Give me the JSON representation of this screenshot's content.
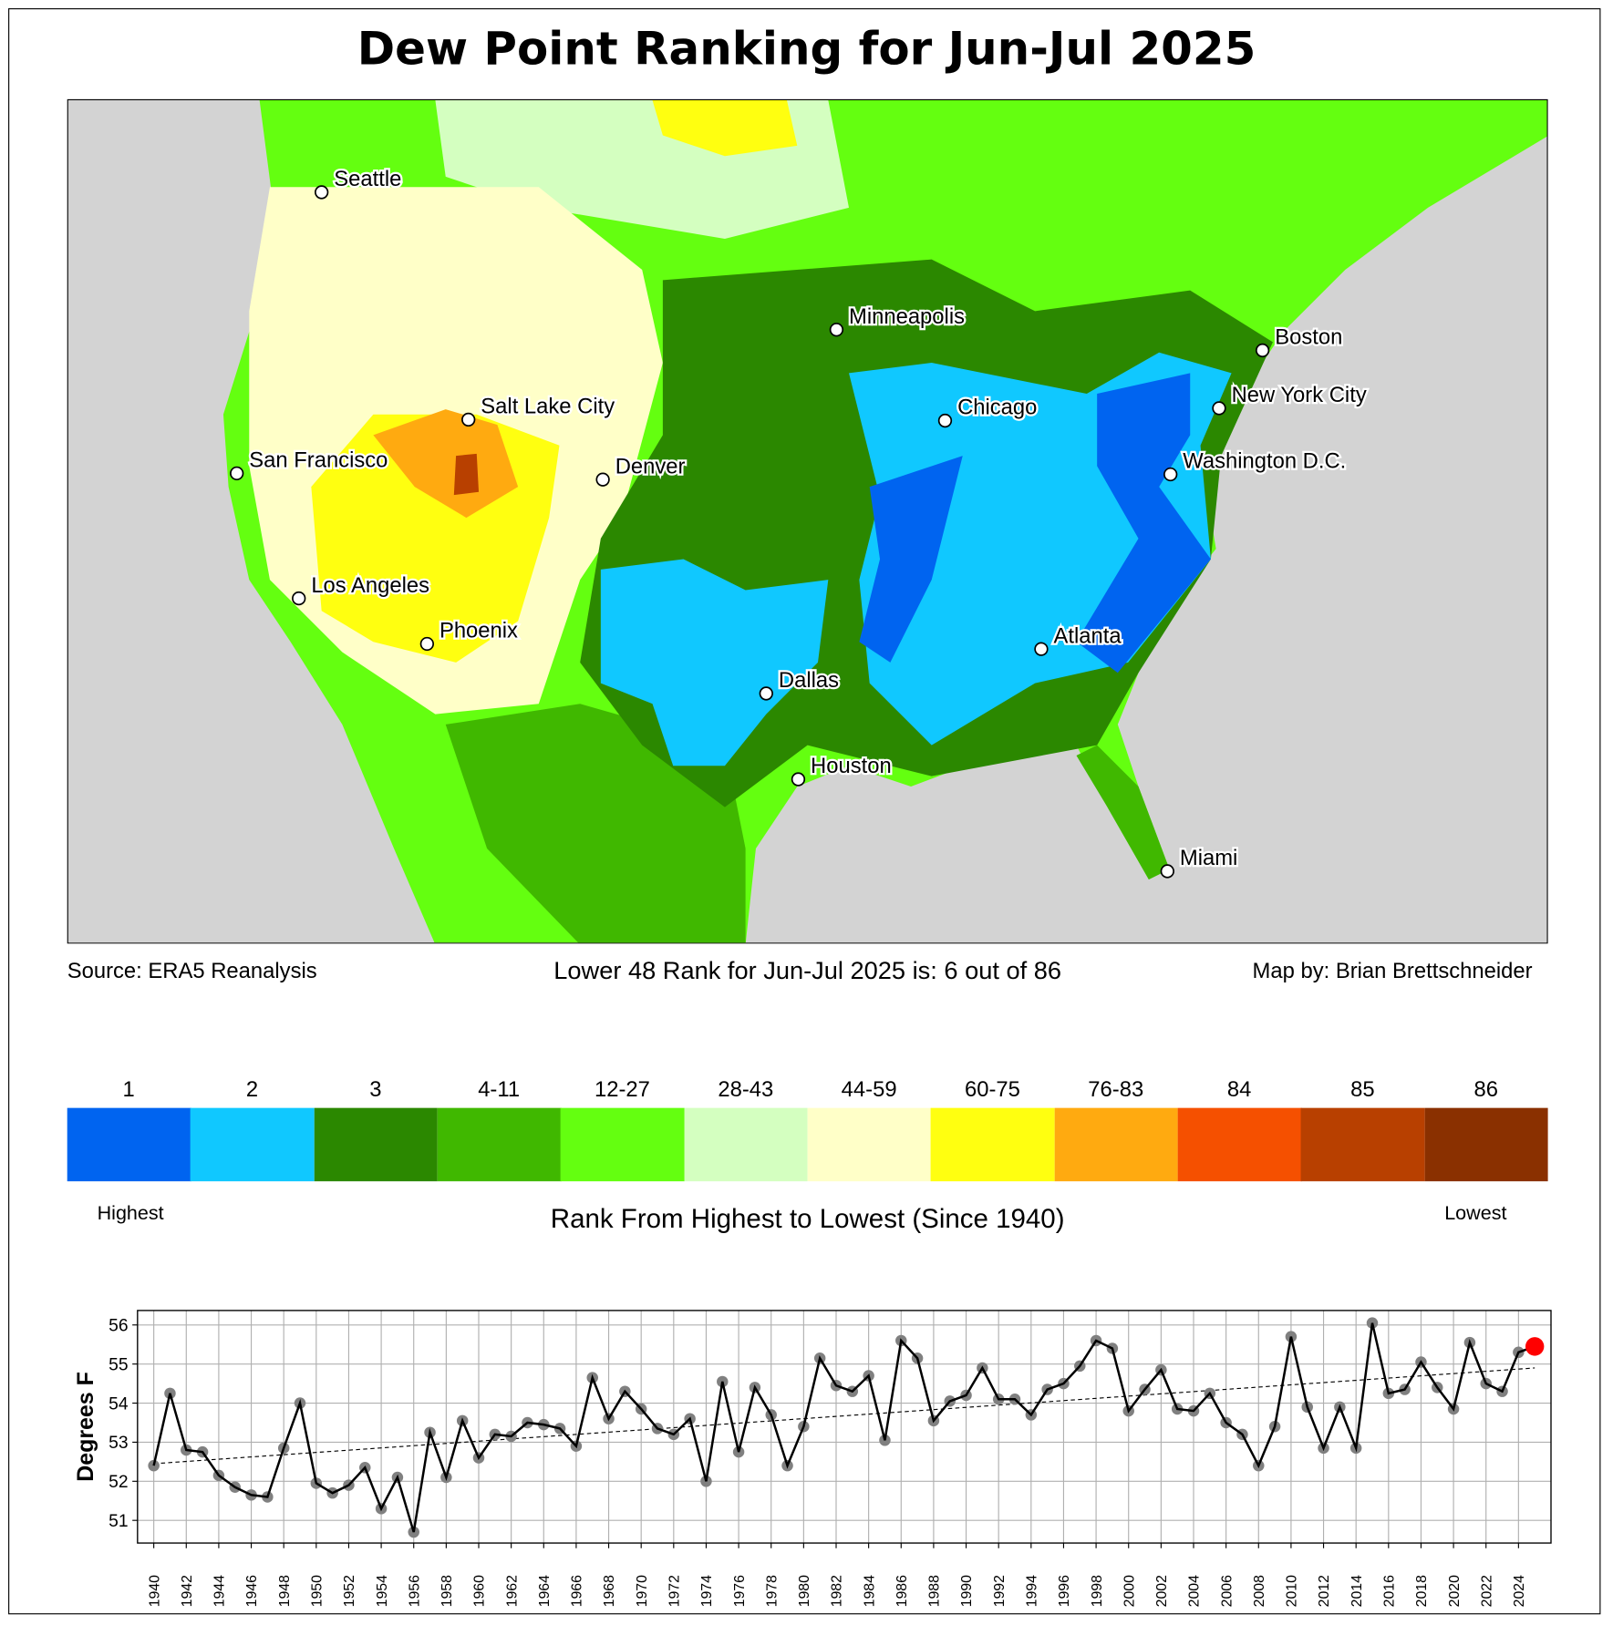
{
  "title": "Dew Point Ranking for Jun-Jul 2025",
  "footer": {
    "source": "Source: ERA5 Reanalysis",
    "rank_text": "Lower 48 Rank for Jun-Jul 2025 is: 6 out of 86",
    "credit": "Map by: Brian Brettschneider"
  },
  "map": {
    "cities": [
      {
        "name": "Seattle"
      },
      {
        "name": "San Francisco"
      },
      {
        "name": "Los Angeles"
      },
      {
        "name": "Phoenix"
      },
      {
        "name": "Salt Lake City"
      },
      {
        "name": "Denver"
      },
      {
        "name": "Minneapolis"
      },
      {
        "name": "Chicago"
      },
      {
        "name": "Dallas"
      },
      {
        "name": "Houston"
      },
      {
        "name": "Atlanta"
      },
      {
        "name": "Miami"
      },
      {
        "name": "Boston"
      },
      {
        "name": "New York City"
      },
      {
        "name": "Washington D.C."
      }
    ]
  },
  "colorbar": {
    "bins": [
      {
        "label": "1",
        "color": "#0064f0"
      },
      {
        "label": "2",
        "color": "#10c8ff"
      },
      {
        "label": "3",
        "color": "#2b8800"
      },
      {
        "label": "4-11",
        "color": "#40b800"
      },
      {
        "label": "12-27",
        "color": "#64ff10"
      },
      {
        "label": "28-43",
        "color": "#d4ffc0"
      },
      {
        "label": "44-59",
        "color": "#ffffc8"
      },
      {
        "label": "60-75",
        "color": "#ffff10"
      },
      {
        "label": "76-83",
        "color": "#ffaa10"
      },
      {
        "label": "84",
        "color": "#f55000"
      },
      {
        "label": "85",
        "color": "#b84000"
      },
      {
        "label": "86",
        "color": "#8a3000"
      }
    ],
    "low_end": "Highest",
    "high_end": "Lowest",
    "caption": "Rank From Highest to Lowest (Since 1940)"
  },
  "chart_data": {
    "type": "line",
    "ylabel": "Degrees F",
    "xlabel": "",
    "ylim": [
      50.42,
      56.37
    ],
    "xlim": [
      1939,
      2026
    ],
    "yticks": [
      "51",
      "52",
      "53",
      "54",
      "55",
      "56"
    ],
    "grid": true,
    "x": [
      1940,
      1941,
      1942,
      1943,
      1944,
      1945,
      1946,
      1947,
      1948,
      1949,
      1950,
      1951,
      1952,
      1953,
      1954,
      1955,
      1956,
      1957,
      1958,
      1959,
      1960,
      1961,
      1962,
      1963,
      1964,
      1965,
      1966,
      1967,
      1968,
      1969,
      1970,
      1971,
      1972,
      1973,
      1974,
      1975,
      1976,
      1977,
      1978,
      1979,
      1980,
      1981,
      1982,
      1983,
      1984,
      1985,
      1986,
      1987,
      1988,
      1989,
      1990,
      1991,
      1992,
      1993,
      1994,
      1995,
      1996,
      1997,
      1998,
      1999,
      2000,
      2001,
      2002,
      2003,
      2004,
      2005,
      2006,
      2007,
      2008,
      2009,
      2010,
      2011,
      2012,
      2013,
      2014,
      2015,
      2016,
      2017,
      2018,
      2019,
      2020,
      2021,
      2022,
      2023,
      2024,
      2025
    ],
    "values": [
      52.4,
      54.25,
      52.8,
      52.75,
      52.15,
      51.85,
      51.65,
      51.6,
      52.85,
      54.0,
      51.95,
      51.7,
      51.9,
      52.35,
      51.3,
      52.1,
      50.7,
      53.25,
      52.1,
      53.55,
      52.6,
      53.2,
      53.15,
      53.5,
      53.45,
      53.35,
      52.9,
      54.65,
      53.6,
      54.3,
      53.85,
      53.35,
      53.2,
      53.6,
      52.0,
      54.55,
      52.75,
      54.4,
      53.7,
      52.4,
      53.4,
      55.15,
      54.45,
      54.3,
      54.7,
      53.05,
      55.6,
      55.15,
      53.55,
      54.05,
      54.2,
      54.9,
      54.1,
      54.1,
      53.7,
      54.35,
      54.5,
      54.95,
      55.6,
      55.4,
      53.8,
      54.35,
      54.85,
      53.85,
      53.8,
      54.25,
      53.5,
      53.2,
      52.4,
      53.4,
      55.7,
      53.9,
      52.85,
      53.9,
      52.85,
      56.05,
      54.25,
      54.35,
      55.05,
      54.4,
      53.85,
      55.55,
      54.5,
      54.3,
      55.3,
      55.45
    ],
    "highlight_year": 2025,
    "highlight_color": "#ff0000",
    "trend": {
      "x": [
        1940,
        2025
      ],
      "y": [
        52.45,
        54.9
      ]
    }
  }
}
